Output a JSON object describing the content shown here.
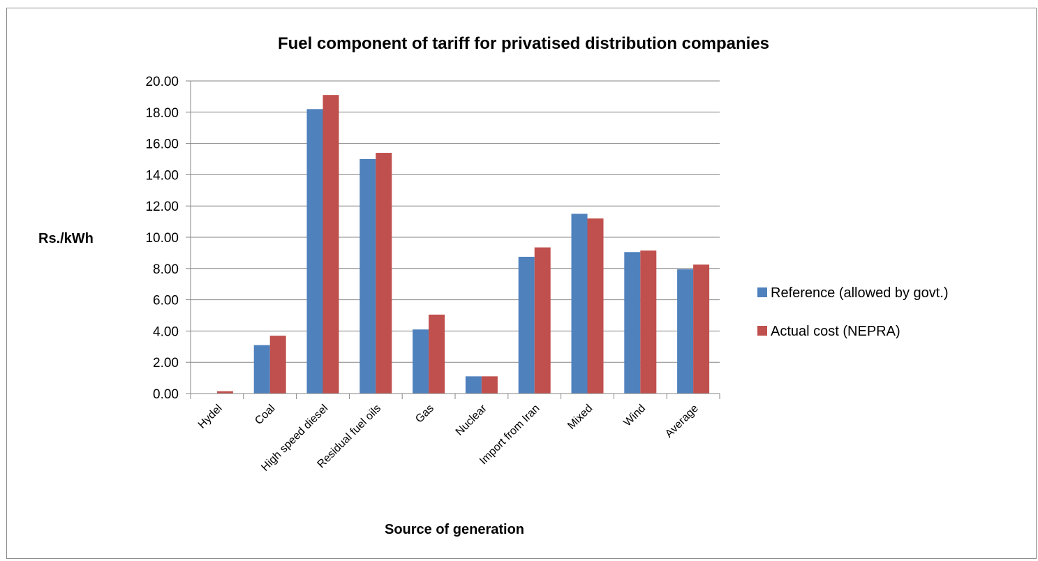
{
  "chart_data": {
    "type": "bar",
    "title": "Fuel component of tariff for privatised distribution companies",
    "xlabel": "Source of generation",
    "ylabel": "Rs./kWh",
    "ylim": [
      0,
      20
    ],
    "yticks": [
      "0.00",
      "2.00",
      "4.00",
      "6.00",
      "8.00",
      "10.00",
      "12.00",
      "14.00",
      "16.00",
      "18.00",
      "20.00"
    ],
    "grid": true,
    "legend_position": "right",
    "categories": [
      "Hydel",
      "Coal",
      "High speed diesel",
      "Residual fuel oils",
      "Gas",
      "Nuclear",
      "Import from Iran",
      "Mixed",
      "Wind",
      "Average"
    ],
    "series": [
      {
        "name": "Reference (allowed by govt.)",
        "color": "#4f81bd",
        "values": [
          0.0,
          3.1,
          18.2,
          15.0,
          4.1,
          1.1,
          8.75,
          11.5,
          9.05,
          7.95
        ]
      },
      {
        "name": "Actual cost (NEPRA)",
        "color": "#c0504d",
        "values": [
          0.15,
          3.7,
          19.1,
          15.4,
          5.05,
          1.1,
          9.35,
          11.2,
          9.15,
          8.25
        ]
      }
    ]
  }
}
